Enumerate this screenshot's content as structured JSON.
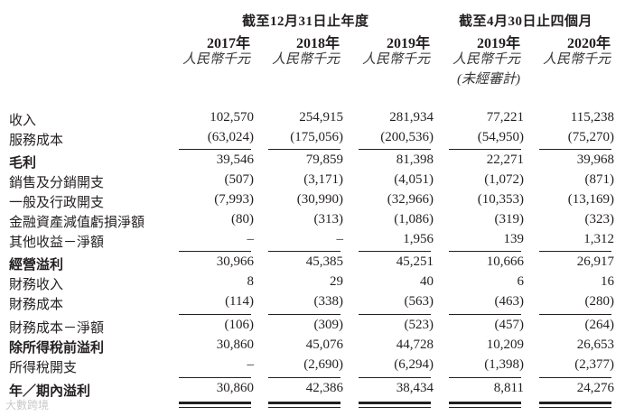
{
  "header": {
    "group_annual": "截至12月31日止年度",
    "group_interim": "截至4月30日止四個月",
    "columns": [
      {
        "year": "2017年",
        "currency": "人民幣千元",
        "note": ""
      },
      {
        "year": "2018年",
        "currency": "人民幣千元",
        "note": ""
      },
      {
        "year": "2019年",
        "currency": "人民幣千元",
        "note": ""
      },
      {
        "year": "2019年",
        "currency": "人民幣千元",
        "note": "(未經審計)"
      },
      {
        "year": "2020年",
        "currency": "人民幣千元",
        "note": ""
      }
    ]
  },
  "rows": [
    {
      "label": "收入",
      "bold": false,
      "values": [
        "102,570",
        "254,915",
        "281,934",
        "77,221",
        "115,238"
      ]
    },
    {
      "label": "服務成本",
      "bold": false,
      "values": [
        "(63,024)",
        "(175,056)",
        "(200,536)",
        "(54,950)",
        "(75,270)"
      ]
    },
    {
      "label": "毛利",
      "bold": true,
      "values": [
        "39,546",
        "79,859",
        "81,398",
        "22,271",
        "39,968"
      ]
    },
    {
      "label": "銷售及分銷開支",
      "bold": false,
      "values": [
        "(507)",
        "(3,171)",
        "(4,051)",
        "(1,072)",
        "(871)"
      ]
    },
    {
      "label": "一般及行政開支",
      "bold": false,
      "values": [
        "(7,993)",
        "(30,990)",
        "(32,966)",
        "(10,353)",
        "(13,169)"
      ]
    },
    {
      "label": "金融資產減值虧損淨額",
      "bold": false,
      "values": [
        "(80)",
        "(313)",
        "(1,086)",
        "(319)",
        "(323)"
      ]
    },
    {
      "label": "其他收益－淨額",
      "bold": false,
      "values": [
        "–",
        "–",
        "1,956",
        "139",
        "1,312"
      ]
    },
    {
      "label": "經營溢利",
      "bold": true,
      "values": [
        "30,966",
        "45,385",
        "45,251",
        "10,666",
        "26,917"
      ]
    },
    {
      "label": "財務收入",
      "bold": false,
      "values": [
        "8",
        "29",
        "40",
        "6",
        "16"
      ]
    },
    {
      "label": "財務成本",
      "bold": false,
      "values": [
        "(114)",
        "(338)",
        "(563)",
        "(463)",
        "(280)"
      ]
    },
    {
      "label": "財務成本－淨額",
      "bold": false,
      "values": [
        "(106)",
        "(309)",
        "(523)",
        "(457)",
        "(264)"
      ]
    },
    {
      "label": "除所得稅前溢利",
      "bold": true,
      "values": [
        "30,860",
        "45,076",
        "44,728",
        "10,209",
        "26,653"
      ]
    },
    {
      "label": "所得稅開支",
      "bold": false,
      "values": [
        "–",
        "(2,690)",
        "(6,294)",
        "(1,398)",
        "(2,377)"
      ]
    },
    {
      "label": "年／期內溢利",
      "bold": true,
      "values": [
        "30,860",
        "42,386",
        "38,434",
        "8,811",
        "24,276"
      ]
    }
  ],
  "watermark": "大數跨境"
}
